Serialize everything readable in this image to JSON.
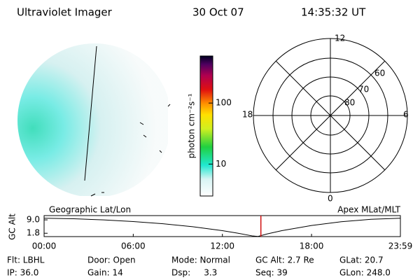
{
  "header": {
    "title": "Ultraviolet Imager",
    "date": "30 Oct 07",
    "time": "14:35:32 UT"
  },
  "colorbar": {
    "label": "photon cm⁻²s⁻¹",
    "log": true,
    "lim": [
      3,
      590
    ],
    "ticks": [
      10,
      100
    ]
  },
  "polar": {
    "hour_labels": [
      "12",
      "18",
      "6",
      "0"
    ],
    "lat_labels": [
      "60",
      "70",
      "80"
    ]
  },
  "chart_data": {
    "type": "line",
    "left_title": "Geographic Lat/Lon",
    "right_title": "Apex MLat/MLT",
    "ylabel": "GC Alt",
    "x": [
      0,
      2,
      4,
      6,
      8,
      10,
      12,
      13,
      14,
      14.4,
      15,
      16,
      18,
      20,
      22,
      23.98
    ],
    "values": [
      9.9,
      9.6,
      9.0,
      8.1,
      6.9,
      5.3,
      3.2,
      1.9,
      0.4,
      0.1,
      1.4,
      3.2,
      6.0,
      8.0,
      9.3,
      9.9
    ],
    "color": "#000000",
    "marker_x": 14.59,
    "marker_color": "#d01010",
    "xlim": [
      0,
      23.98
    ],
    "ylim": [
      0,
      11.3
    ],
    "xticks": [
      {
        "value": 0,
        "label": "00:00"
      },
      {
        "value": 6,
        "label": "06:00"
      },
      {
        "value": 12,
        "label": "12:00"
      },
      {
        "value": 18,
        "label": "18:00"
      },
      {
        "value": 23.98,
        "label": "23:59"
      }
    ],
    "yticks": [
      {
        "value": 9,
        "label": "9.0"
      },
      {
        "value": 1.8,
        "label": "1.8"
      }
    ]
  },
  "footer": {
    "rows": [
      [
        "Flt: LBHL",
        "Door: Open",
        "Mode: Normal",
        "GC Alt: 2.7 Re",
        "GLat: 20.7"
      ],
      [
        "IP: 36.0",
        "Gain: 14",
        "Dsp:     3.3",
        "Seq: 39",
        "GLon: 248.0"
      ]
    ]
  }
}
